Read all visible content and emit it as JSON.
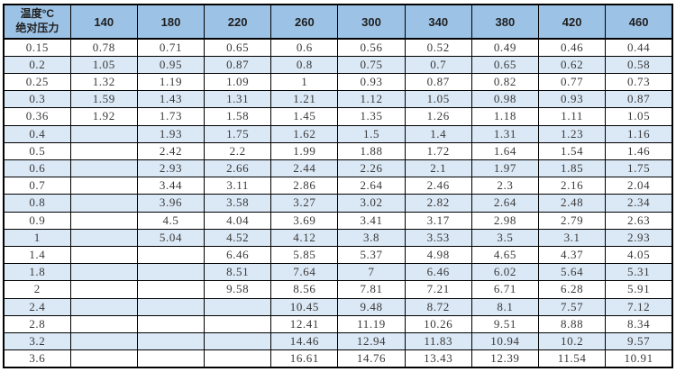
{
  "colors": {
    "header_bg": "#9cc2e5",
    "stripe_bg": "#dbe8f5",
    "border": "#000000",
    "header_text": "#1f1f1f",
    "cell_text": "#3a3a3a"
  },
  "table": {
    "corner": {
      "line1": "温度°C",
      "line2": "绝对压力"
    },
    "columns": [
      "140",
      "180",
      "220",
      "260",
      "300",
      "340",
      "380",
      "420",
      "460"
    ],
    "rows": [
      {
        "pressure": "0.15",
        "values": [
          "0.78",
          "0.71",
          "0.65",
          "0.6",
          "0.56",
          "0.52",
          "0.49",
          "0.46",
          "0.44"
        ]
      },
      {
        "pressure": "0.2",
        "values": [
          "1.05",
          "0.95",
          "0.87",
          "0.8",
          "0.75",
          "0.7",
          "0.65",
          "0.62",
          "0.58"
        ]
      },
      {
        "pressure": "0.25",
        "values": [
          "1.32",
          "1.19",
          "1.09",
          "1",
          "0.93",
          "0.87",
          "0.82",
          "0.77",
          "0.73"
        ]
      },
      {
        "pressure": "0.3",
        "values": [
          "1.59",
          "1.43",
          "1.31",
          "1.21",
          "1.12",
          "1.05",
          "0.98",
          "0.93",
          "0.87"
        ]
      },
      {
        "pressure": "0.36",
        "values": [
          "1.92",
          "1.73",
          "1.58",
          "1.45",
          "1.35",
          "1.26",
          "1.18",
          "1.11",
          "1.05"
        ]
      },
      {
        "pressure": "0.4",
        "values": [
          "",
          "1.93",
          "1.75",
          "1.62",
          "1.5",
          "1.4",
          "1.31",
          "1.23",
          "1.16"
        ]
      },
      {
        "pressure": "0.5",
        "values": [
          "",
          "2.42",
          "2.2",
          "1.99",
          "1.88",
          "1.72",
          "1.64",
          "1.54",
          "1.46"
        ]
      },
      {
        "pressure": "0.6",
        "values": [
          "",
          "2.93",
          "2.66",
          "2.44",
          "2.26",
          "2.1",
          "1.97",
          "1.85",
          "1.75"
        ]
      },
      {
        "pressure": "0.7",
        "values": [
          "",
          "3.44",
          "3.11",
          "2.86",
          "2.64",
          "2.46",
          "2.3",
          "2.16",
          "2.04"
        ]
      },
      {
        "pressure": "0.8",
        "values": [
          "",
          "3.96",
          "3.58",
          "3.27",
          "3.02",
          "2.82",
          "2.64",
          "2.48",
          "2.34"
        ]
      },
      {
        "pressure": "0.9",
        "values": [
          "",
          "4.5",
          "4.04",
          "3.69",
          "3.41",
          "3.17",
          "2.98",
          "2.79",
          "2.63"
        ]
      },
      {
        "pressure": "1",
        "values": [
          "",
          "5.04",
          "4.52",
          "4.12",
          "3.8",
          "3.53",
          "3.5",
          "3.1",
          "2.93"
        ]
      },
      {
        "pressure": "1.4",
        "values": [
          "",
          "",
          "6.46",
          "5.85",
          "5.37",
          "4.98",
          "4.65",
          "4.37",
          "4.05"
        ]
      },
      {
        "pressure": "1.8",
        "values": [
          "",
          "",
          "8.51",
          "7.64",
          "7",
          "6.46",
          "6.02",
          "5.64",
          "5.31"
        ]
      },
      {
        "pressure": "2",
        "values": [
          "",
          "",
          "9.58",
          "8.56",
          "7.81",
          "7.21",
          "6.71",
          "6.28",
          "5.91"
        ]
      },
      {
        "pressure": "2.4",
        "values": [
          "",
          "",
          "",
          "10.45",
          "9.48",
          "8.72",
          "8.1",
          "7.57",
          "7.12"
        ]
      },
      {
        "pressure": "2.8",
        "values": [
          "",
          "",
          "",
          "12.41",
          "11.19",
          "10.26",
          "9.51",
          "8.88",
          "8.34"
        ]
      },
      {
        "pressure": "3.2",
        "values": [
          "",
          "",
          "",
          "14.46",
          "12.94",
          "11.83",
          "10.94",
          "10.2",
          "9.57"
        ]
      },
      {
        "pressure": "3.6",
        "values": [
          "",
          "",
          "",
          "16.61",
          "14.76",
          "13.43",
          "12.39",
          "11.54",
          "10.91"
        ]
      }
    ]
  },
  "chart_data": {
    "type": "table",
    "title": "",
    "corner_header": "温度°C / 绝对压力",
    "columns": [
      "140",
      "180",
      "220",
      "260",
      "300",
      "340",
      "380",
      "420",
      "460"
    ],
    "row_labels": [
      "0.15",
      "0.2",
      "0.25",
      "0.3",
      "0.36",
      "0.4",
      "0.5",
      "0.6",
      "0.7",
      "0.8",
      "0.9",
      "1",
      "1.4",
      "1.8",
      "2",
      "2.4",
      "2.8",
      "3.2",
      "3.6"
    ]
  }
}
